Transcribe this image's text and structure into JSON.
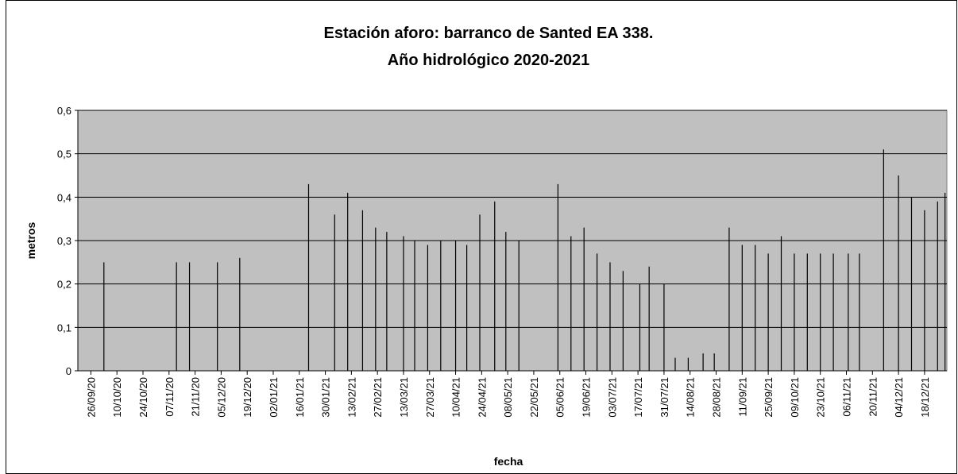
{
  "chart_data": {
    "type": "bar",
    "title": "Estación aforo: barranco de Santed EA 338.",
    "subtitle": "Año hidrológico 2020-2021",
    "x_label": "fecha",
    "y_label": "metros",
    "x": [
      "03/10/20",
      "11/11/20",
      "18/11/20",
      "03/12/20",
      "15/12/20",
      "21/01/21",
      "04/02/21",
      "11/02/21",
      "19/02/21",
      "26/02/21",
      "04/03/21",
      "13/03/21",
      "19/03/21",
      "26/03/21",
      "02/04/21",
      "10/04/21",
      "16/04/21",
      "23/04/21",
      "01/05/21",
      "07/05/21",
      "14/05/21",
      "04/06/21",
      "11/06/21",
      "18/06/21",
      "25/06/21",
      "02/07/21",
      "09/07/21",
      "18/07/21",
      "23/07/21",
      "31/07/21",
      "06/08/21",
      "13/08/21",
      "21/08/21",
      "27/08/21",
      "04/09/21",
      "11/09/21",
      "18/09/21",
      "25/09/21",
      "02/10/21",
      "09/10/21",
      "16/10/21",
      "23/10/21",
      "30/10/21",
      "07/11/21",
      "13/11/21",
      "26/11/21",
      "04/12/21",
      "11/12/21",
      "18/12/21",
      "25/12/21",
      "29/12/21"
    ],
    "values": [
      0.25,
      0.25,
      0.25,
      0.25,
      0.26,
      0.43,
      0.36,
      0.41,
      0.37,
      0.33,
      0.32,
      0.31,
      0.3,
      0.29,
      0.3,
      0.3,
      0.29,
      0.36,
      0.39,
      0.32,
      0.3,
      0.43,
      0.31,
      0.33,
      0.27,
      0.25,
      0.23,
      0.2,
      0.24,
      0.2,
      0.03,
      0.03,
      0.04,
      0.04,
      0.33,
      0.29,
      0.29,
      0.27,
      0.31,
      0.27,
      0.27,
      0.27,
      0.27,
      0.27,
      0.27,
      0.51,
      0.45,
      0.4,
      0.37,
      0.39,
      0.41
    ],
    "color": "#000000",
    "xlim": [
      "19/09/20",
      "30/12/21"
    ],
    "xticks": [
      "26/09/20",
      "10/10/20",
      "24/10/20",
      "07/11/20",
      "21/11/20",
      "05/12/20",
      "19/12/20",
      "02/01/21",
      "16/01/21",
      "30/01/21",
      "13/02/21",
      "27/02/21",
      "13/03/21",
      "27/03/21",
      "10/04/21",
      "24/04/21",
      "08/05/21",
      "22/05/21",
      "05/06/21",
      "19/06/21",
      "03/07/21",
      "17/07/21",
      "31/07/21",
      "14/08/21",
      "28/08/21",
      "11/09/21",
      "25/09/21",
      "09/10/21",
      "23/10/21",
      "06/11/21",
      "20/11/21",
      "04/12/21",
      "18/12/21"
    ],
    "ylim": [
      0,
      0.6
    ],
    "yticks": [
      0,
      {
        "value": 0.1,
        "label": "0,1"
      },
      {
        "value": 0.2,
        "label": "0,2"
      },
      {
        "value": 0.3,
        "label": "0,3"
      },
      {
        "value": 0.4,
        "label": "0,4"
      },
      {
        "value": 0.5,
        "label": "0,5"
      },
      {
        "value": 0.6,
        "label": "0,6"
      }
    ],
    "grid": true
  }
}
